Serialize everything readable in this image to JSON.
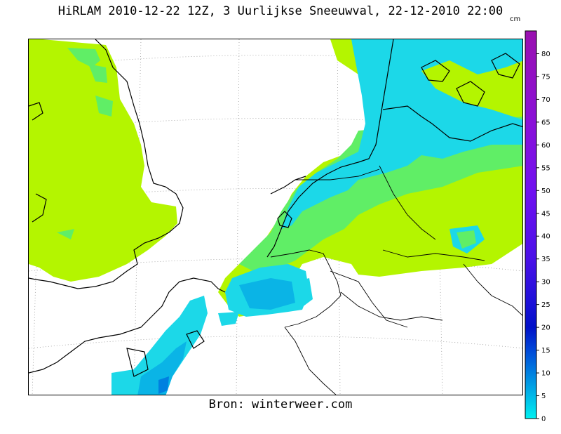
{
  "title": "HiRLAM 2010-12-22 12Z, 3 Uurlijkse Sneeuwval, 22-12-2010 22:00",
  "source": "Bron: winterweer.com",
  "legend": {
    "unit": "cm",
    "min": 0,
    "max": 85,
    "ticks": [
      0,
      5,
      10,
      15,
      20,
      25,
      30,
      35,
      40,
      45,
      50,
      55,
      60,
      65,
      70,
      75,
      80
    ],
    "stops": [
      {
        "value": 0,
        "color": "#00f0f0"
      },
      {
        "value": 5,
        "color": "#00b8e8"
      },
      {
        "value": 10,
        "color": "#0080e0"
      },
      {
        "value": 15,
        "color": "#0048d8"
      },
      {
        "value": 20,
        "color": "#0010c8"
      },
      {
        "value": 25,
        "color": "#1a10d8"
      },
      {
        "value": 35,
        "color": "#4a10e8"
      },
      {
        "value": 50,
        "color": "#7010f0"
      },
      {
        "value": 65,
        "color": "#8a10d8"
      },
      {
        "value": 85,
        "color": "#9a10b0"
      }
    ]
  },
  "colors": {
    "snow_low": "#b4f500",
    "snow_mid": "#60ee66",
    "snow_high": "#1cd8e8",
    "snow_peak": "#0ab4e6",
    "coast": "#000000",
    "grid": "#9a9a9a"
  }
}
